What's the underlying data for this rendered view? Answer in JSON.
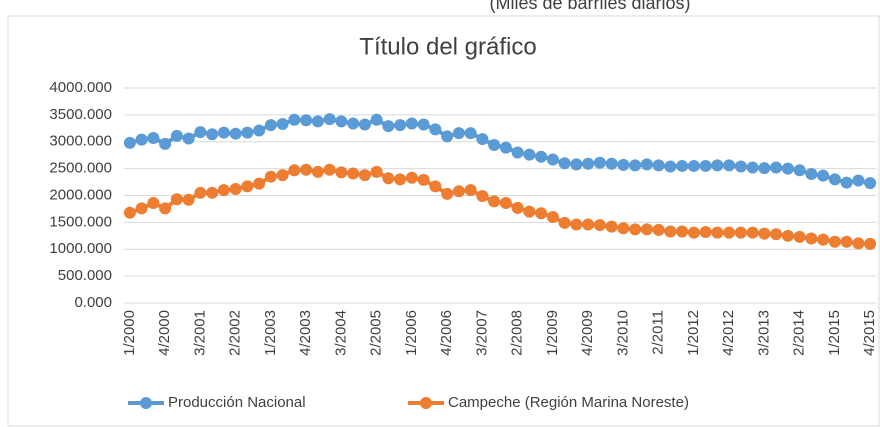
{
  "chart_data": {
    "type": "line",
    "title": "Título del gráfico",
    "subtitle": "(Miles de barriles diarios)",
    "categories": [
      "1/2000",
      null,
      null,
      "4/2000",
      null,
      null,
      "3/2001",
      null,
      null,
      "2/2002",
      null,
      null,
      "1/2003",
      null,
      null,
      "4/2003",
      null,
      null,
      "3/2004",
      null,
      null,
      "2/2005",
      null,
      null,
      "1/2006",
      null,
      null,
      "4/2006",
      null,
      null,
      "3/2007",
      null,
      null,
      "2/2008",
      null,
      null,
      "1/2009",
      null,
      null,
      "4/2009",
      null,
      null,
      "3/2010",
      null,
      null,
      "2/2011",
      null,
      null,
      "1/2012",
      null,
      null,
      "4/2012",
      null,
      null,
      "3/2013",
      null,
      null,
      "2/2014",
      null,
      null,
      "1/2015",
      null,
      null,
      "4/2015"
    ],
    "series": [
      {
        "name": "Producción Nacional",
        "color": "#5b9bd5",
        "values": [
          2980,
          3040,
          3070,
          2960,
          3110,
          3060,
          3180,
          3140,
          3170,
          3150,
          3170,
          3210,
          3310,
          3330,
          3410,
          3400,
          3380,
          3420,
          3380,
          3340,
          3320,
          3410,
          3290,
          3310,
          3340,
          3320,
          3230,
          3100,
          3160,
          3160,
          3050,
          2940,
          2890,
          2800,
          2760,
          2720,
          2670,
          2600,
          2580,
          2590,
          2610,
          2590,
          2570,
          2560,
          2580,
          2560,
          2540,
          2550,
          2550,
          2550,
          2560,
          2560,
          2540,
          2520,
          2510,
          2520,
          2500,
          2470,
          2400,
          2370,
          2300,
          2240,
          2280,
          2230
        ]
      },
      {
        "name": "Campeche (Región Marina Noreste)",
        "color": "#ed7d31",
        "values": [
          1680,
          1760,
          1860,
          1760,
          1930,
          1920,
          2050,
          2050,
          2100,
          2120,
          2170,
          2220,
          2350,
          2380,
          2470,
          2480,
          2440,
          2480,
          2430,
          2410,
          2380,
          2440,
          2320,
          2300,
          2330,
          2290,
          2170,
          2030,
          2080,
          2100,
          1990,
          1890,
          1860,
          1770,
          1700,
          1670,
          1600,
          1490,
          1460,
          1460,
          1450,
          1420,
          1390,
          1370,
          1370,
          1360,
          1330,
          1330,
          1310,
          1320,
          1310,
          1310,
          1310,
          1310,
          1290,
          1280,
          1250,
          1230,
          1200,
          1180,
          1140,
          1140,
          1110,
          1100
        ]
      }
    ],
    "ylim": [
      0,
      4000
    ],
    "yticks": [
      {
        "value": 0,
        "label": "0.000"
      },
      {
        "value": 500,
        "label": "500.000"
      },
      {
        "value": 1000,
        "label": "1000.000"
      },
      {
        "value": 1500,
        "label": "1500.000"
      },
      {
        "value": 2000,
        "label": "2000.000"
      },
      {
        "value": 2500,
        "label": "2500.000"
      },
      {
        "value": 3000,
        "label": "3000.000"
      },
      {
        "value": 3500,
        "label": "3500.000"
      },
      {
        "value": 4000,
        "label": "4000.000"
      }
    ],
    "grid": true,
    "legend": "bottom"
  }
}
